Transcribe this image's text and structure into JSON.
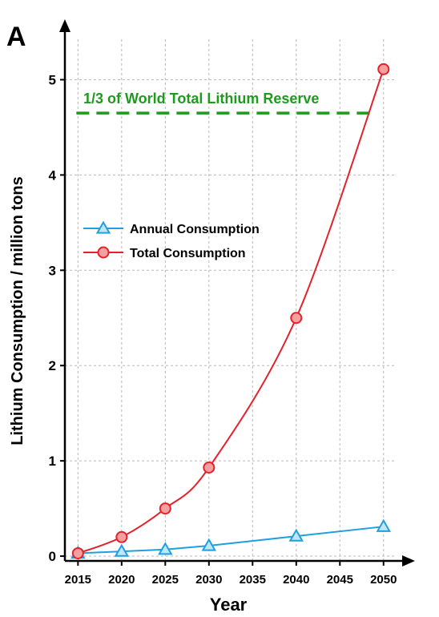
{
  "panel_label": "A",
  "chart_data": {
    "type": "line",
    "xlabel": "Year",
    "ylabel": "Lithium Consumption / million tons",
    "xlim": [
      2013.5,
      2052.5
    ],
    "ylim": [
      -0.05,
      5.5
    ],
    "x_ticks": [
      2015,
      2020,
      2025,
      2030,
      2035,
      2040,
      2045,
      2050
    ],
    "y_ticks": [
      0,
      1,
      2,
      3,
      4,
      5
    ],
    "grid": true,
    "legend_position": "middle-left",
    "series": [
      {
        "name": "Annual Consumption",
        "marker": "triangle",
        "color": "#1ea0e0",
        "x": [
          2015,
          2020,
          2025,
          2030,
          2040,
          2050
        ],
        "y": [
          0.03,
          0.05,
          0.07,
          0.11,
          0.21,
          0.31
        ]
      },
      {
        "name": "Total Consumption",
        "marker": "circle",
        "color": "#e3222b",
        "x": [
          2015,
          2020,
          2025,
          2030,
          2040,
          2050
        ],
        "y": [
          0.03,
          0.2,
          0.5,
          0.93,
          2.5,
          5.11
        ]
      }
    ],
    "reference_line": {
      "y": 4.65,
      "label": "1/3 of World Total Lithium Reserve",
      "color": "#1e9a1e",
      "x_range": [
        2015,
        2048.5
      ]
    }
  }
}
